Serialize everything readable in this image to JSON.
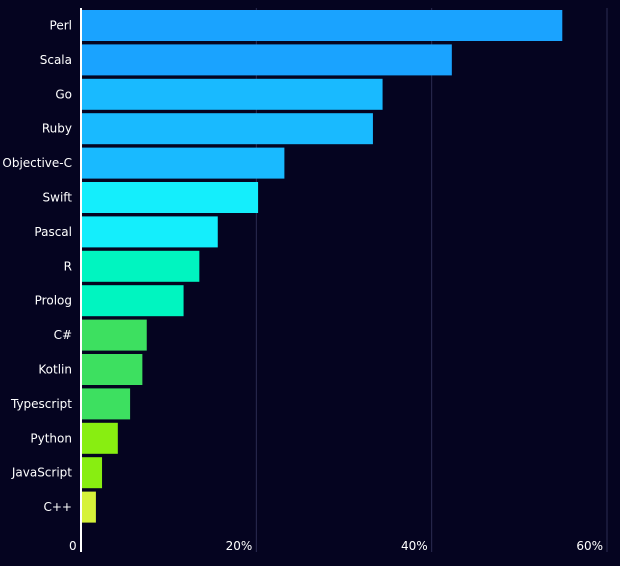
{
  "chart_data": {
    "type": "bar",
    "orientation": "horizontal",
    "categories": [
      "Perl",
      "Scala",
      "Go",
      "Ruby",
      "Objective-C",
      "Swift",
      "Pascal",
      "R",
      "Prolog",
      "C#",
      "Kotlin",
      "Typescript",
      "Python",
      "JavaScript",
      "C++"
    ],
    "values": [
      54.9,
      42.3,
      34.4,
      33.3,
      23.2,
      20.2,
      15.6,
      13.5,
      11.7,
      7.5,
      7.0,
      5.6,
      4.2,
      2.4,
      1.7
    ],
    "bar_colors": [
      "#1aa3ff",
      "#1aa3ff",
      "#19baff",
      "#19baff",
      "#19baff",
      "#14eefc",
      "#14eefc",
      "#00f5c0",
      "#00f5c0",
      "#3de060",
      "#3de060",
      "#3de060",
      "#88ee11",
      "#88ee11",
      "#d6f23a"
    ],
    "xlim": [
      0,
      60
    ],
    "xticks": [
      "0",
      "20%",
      "40%",
      "60%"
    ],
    "grid": true,
    "title": "",
    "xlabel": "",
    "ylabel": ""
  },
  "colors": {
    "background": "#050420",
    "gridline": "#2c2c52",
    "axis": "#ffffff",
    "text": "#ffffff"
  }
}
